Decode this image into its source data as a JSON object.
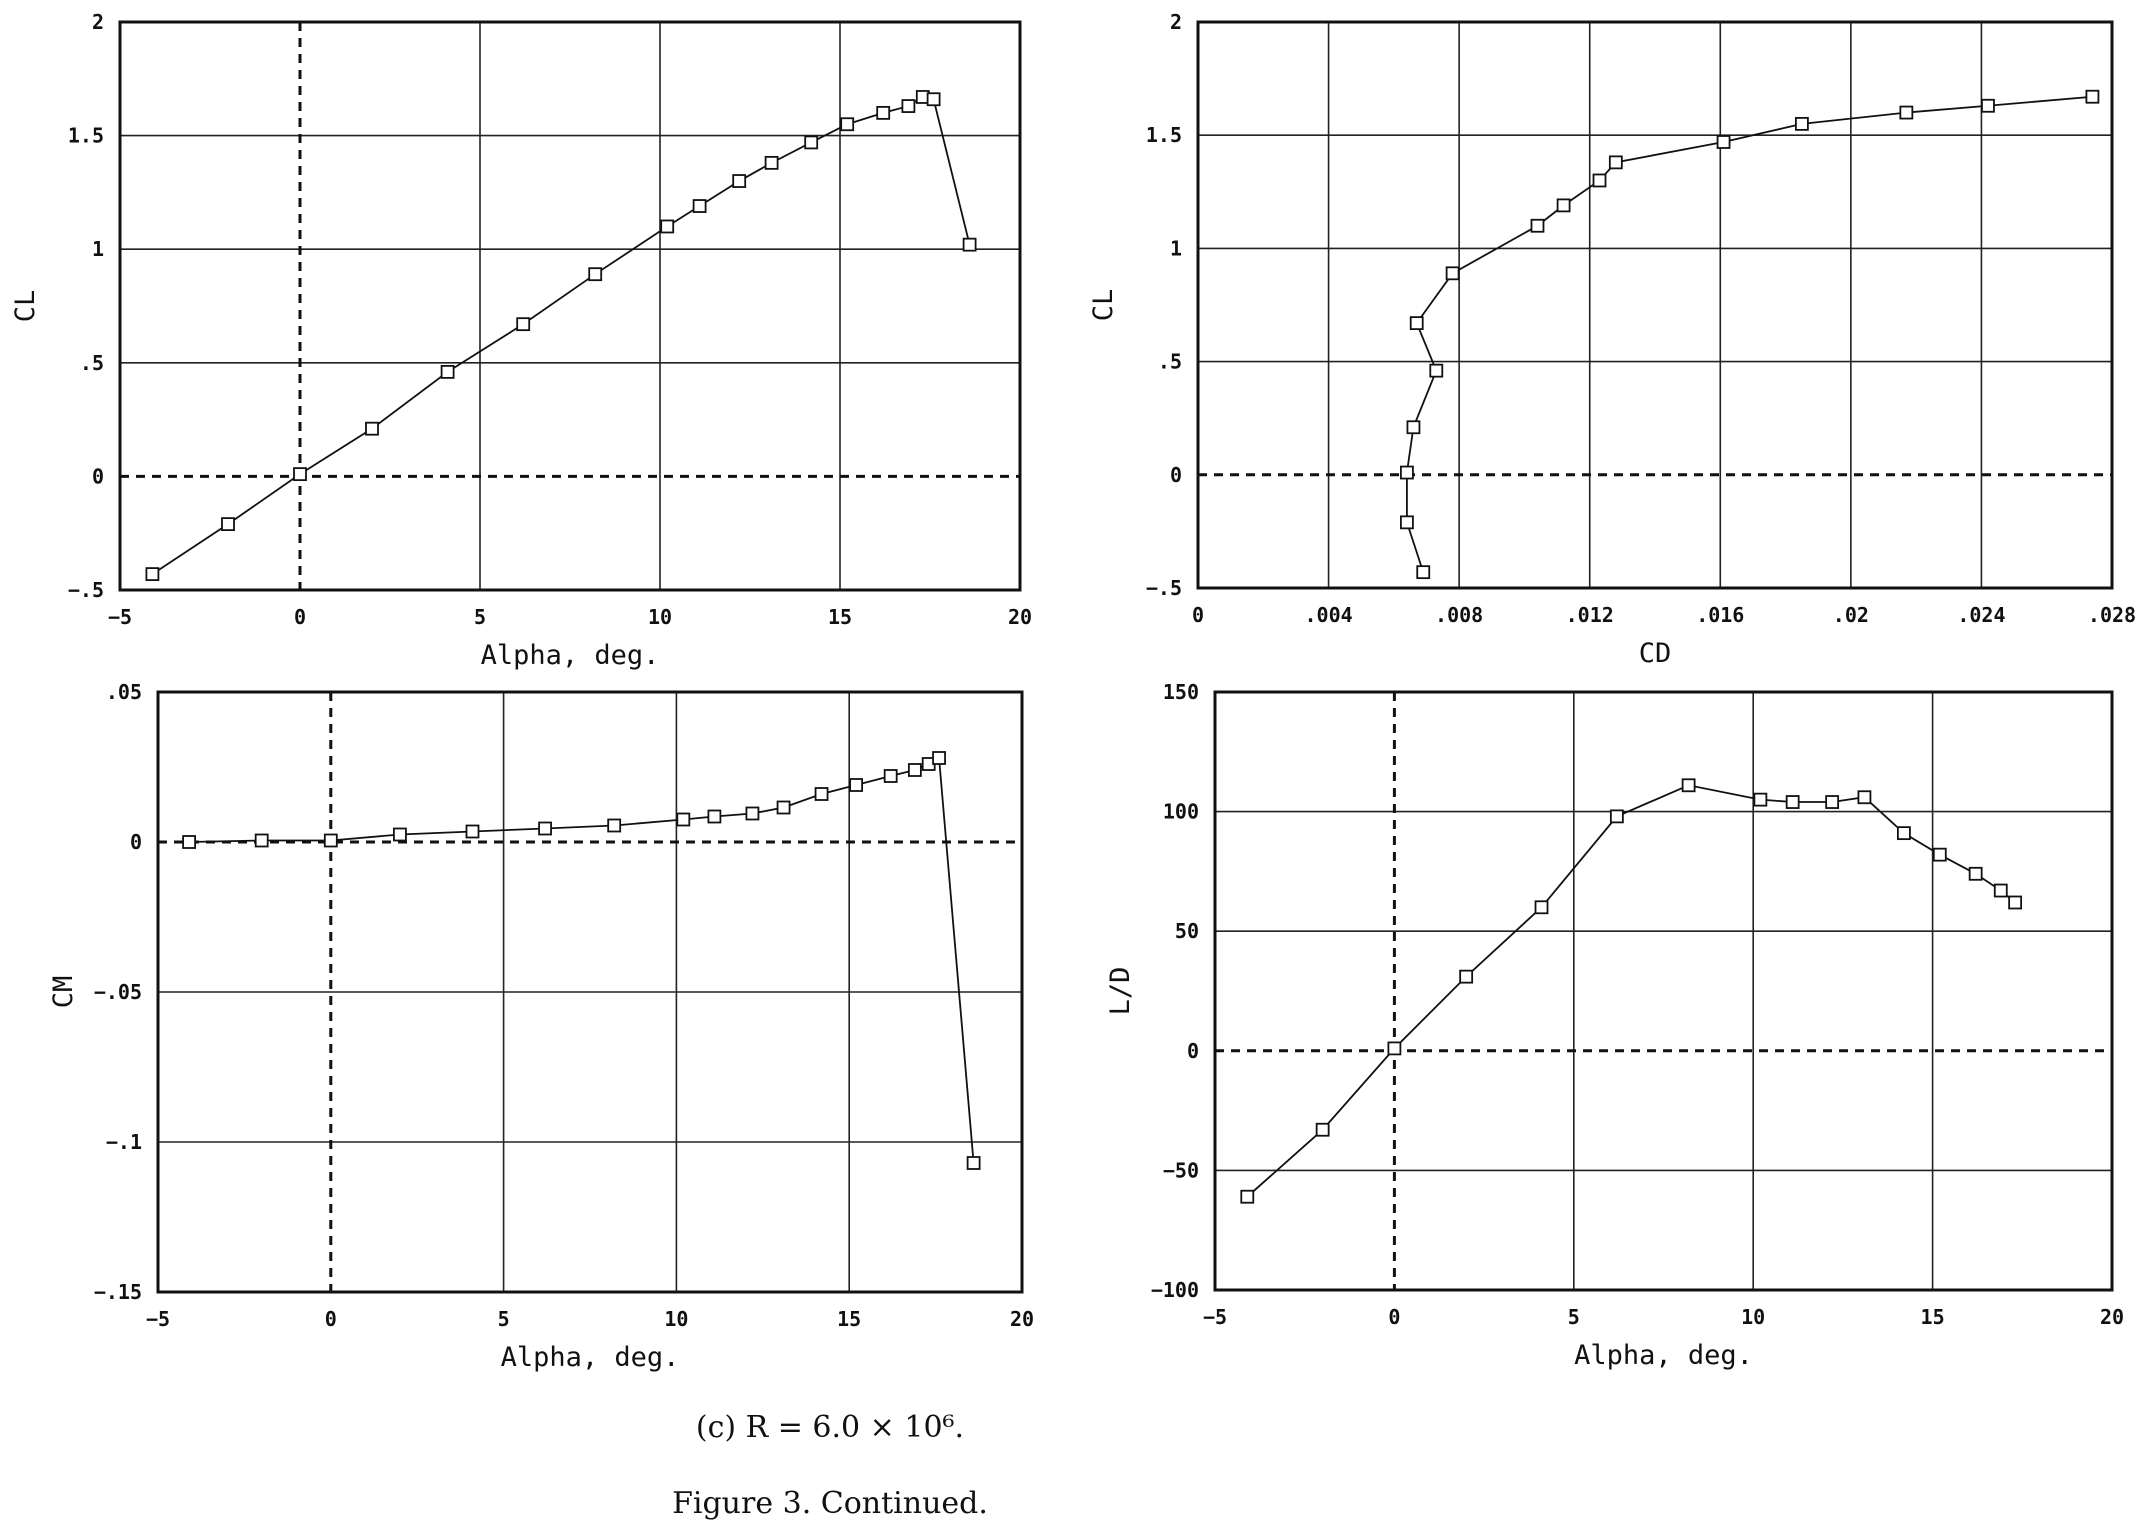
{
  "figure": {
    "subcaption": "(c)  R = 6.0 × 10⁶.",
    "caption": "Figure 3. Continued."
  },
  "chart_data": [
    {
      "id": "cl_alpha",
      "type": "line",
      "xlabel": "Alpha, deg.",
      "ylabel": "CL",
      "xlim": [
        -5,
        20
      ],
      "ylim": [
        -0.5,
        2
      ],
      "xticks": [
        -5,
        0,
        5,
        10,
        15,
        20
      ],
      "xtick_labels": [
        "−5",
        "0",
        "5",
        "10",
        "15",
        "20"
      ],
      "yticks": [
        -0.5,
        0,
        0.5,
        1,
        1.5,
        2
      ],
      "ytick_labels": [
        "−.5",
        "0",
        ".5",
        "1",
        "1.5",
        "2"
      ],
      "grid": true,
      "zero_lines": [
        "x",
        "y"
      ],
      "marker": "square",
      "x": [
        -4.1,
        -2.0,
        0.0,
        2.0,
        4.1,
        6.2,
        8.2,
        10.2,
        11.1,
        12.2,
        13.1,
        14.2,
        15.2,
        16.2,
        16.9,
        17.3,
        17.6,
        18.6
      ],
      "y": [
        -0.43,
        -0.21,
        0.01,
        0.21,
        0.46,
        0.67,
        0.89,
        1.1,
        1.19,
        1.3,
        1.38,
        1.47,
        1.55,
        1.6,
        1.63,
        1.67,
        1.66,
        1.02
      ]
    },
    {
      "id": "cl_cd",
      "type": "line",
      "xlabel": "CD",
      "ylabel": "CL",
      "xlim": [
        0,
        0.028
      ],
      "ylim": [
        -0.5,
        2
      ],
      "xticks": [
        0,
        0.004,
        0.008,
        0.012,
        0.016,
        0.02,
        0.024,
        0.028
      ],
      "xtick_labels": [
        "0",
        ".004",
        ".008",
        ".012",
        ".016",
        ".02",
        ".024",
        ".028"
      ],
      "yticks": [
        -0.5,
        0,
        0.5,
        1,
        1.5,
        2
      ],
      "ytick_labels": [
        "−.5",
        "0",
        ".5",
        "1",
        "1.5",
        "2"
      ],
      "grid": true,
      "zero_lines": [
        "y"
      ],
      "marker": "square",
      "x": [
        0.0069,
        0.0064,
        0.0064,
        0.0066,
        0.0073,
        0.0067,
        0.0078,
        0.0104,
        0.0112,
        0.0123,
        0.0128,
        0.0161,
        0.0185,
        0.0217,
        0.0242,
        0.0274
      ],
      "y": [
        -0.43,
        -0.21,
        0.01,
        0.21,
        0.46,
        0.67,
        0.89,
        1.1,
        1.19,
        1.3,
        1.38,
        1.47,
        1.55,
        1.6,
        1.63,
        1.67
      ]
    },
    {
      "id": "cm_alpha",
      "type": "line",
      "xlabel": "Alpha, deg.",
      "ylabel": "CM",
      "xlim": [
        -5,
        20
      ],
      "ylim": [
        -0.15,
        0.05
      ],
      "xticks": [
        -5,
        0,
        5,
        10,
        15,
        20
      ],
      "xtick_labels": [
        "−5",
        "0",
        "5",
        "10",
        "15",
        "20"
      ],
      "yticks": [
        -0.15,
        -0.1,
        -0.05,
        0,
        0.05
      ],
      "ytick_labels": [
        "−.15",
        "−.1",
        "−.05",
        "0",
        ".05"
      ],
      "grid": true,
      "zero_lines": [
        "x",
        "y"
      ],
      "marker": "square",
      "x": [
        -4.1,
        -2.0,
        0.0,
        2.0,
        4.1,
        6.2,
        8.2,
        10.2,
        11.1,
        12.2,
        13.1,
        14.2,
        15.2,
        16.2,
        16.9,
        17.3,
        17.6,
        18.6
      ],
      "y": [
        0.0,
        0.0005,
        0.0005,
        0.0025,
        0.0035,
        0.0045,
        0.0055,
        0.0075,
        0.0085,
        0.0095,
        0.0115,
        0.016,
        0.019,
        0.022,
        0.024,
        0.026,
        0.028,
        -0.107
      ]
    },
    {
      "id": "ld_alpha",
      "type": "line",
      "xlabel": "Alpha, deg.",
      "ylabel": "L/D",
      "xlim": [
        -5,
        20
      ],
      "ylim": [
        -100,
        150
      ],
      "xticks": [
        -5,
        0,
        5,
        10,
        15,
        20
      ],
      "xtick_labels": [
        "−5",
        "0",
        "5",
        "10",
        "15",
        "20"
      ],
      "yticks": [
        -100,
        -50,
        0,
        50,
        100,
        150
      ],
      "ytick_labels": [
        "−100",
        "−50",
        "0",
        "50",
        "100",
        "150"
      ],
      "grid": true,
      "zero_lines": [
        "x",
        "y"
      ],
      "marker": "square",
      "x": [
        -4.1,
        -2.0,
        0.0,
        2.0,
        4.1,
        6.2,
        8.2,
        10.2,
        11.1,
        12.2,
        13.1,
        14.2,
        15.2,
        16.2,
        16.9,
        17.3
      ],
      "y": [
        -61,
        -33,
        1,
        31,
        60,
        98,
        111,
        105,
        104,
        104,
        106,
        91,
        82,
        74,
        67,
        62
      ]
    }
  ]
}
